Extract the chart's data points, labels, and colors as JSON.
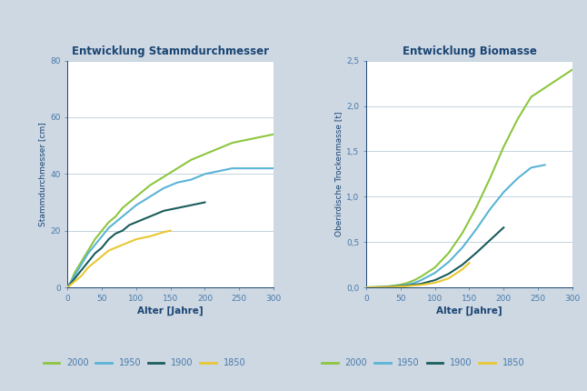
{
  "title_left": "Entwicklung Stammdurchmesser",
  "title_right": "Entwicklung Biomasse",
  "xlabel": "Alter [Jahre]",
  "ylabel_left": "Stammdurchmesser [cm]",
  "ylabel_right": "Oberirdische Trockenmasse [t]",
  "background_color": "#cdd8e3",
  "plot_bg_color": "#ffffff",
  "title_color": "#1a4472",
  "axis_color": "#1a4472",
  "tick_color": "#4a7aaa",
  "grid_color": "#b8ccd8",
  "legend_labels": [
    "2000",
    "1950",
    "1900",
    "1850"
  ],
  "line_colors": [
    "#8dc63f",
    "#5ab4d6",
    "#1a5c5c",
    "#e8c832"
  ],
  "xlim": [
    0,
    300
  ],
  "ylim_left": [
    0,
    80
  ],
  "ylim_right": [
    0,
    2.5
  ],
  "xticks": [
    0,
    50,
    100,
    150,
    200,
    250,
    300
  ],
  "yticks_left": [
    0,
    20,
    40,
    60,
    80
  ],
  "yticks_right": [
    0.0,
    0.5,
    1.0,
    1.5,
    2.0,
    2.5
  ],
  "diam_2000_ages": [
    0,
    5,
    10,
    20,
    30,
    40,
    50,
    60,
    70,
    80,
    90,
    100,
    120,
    140,
    160,
    180,
    200,
    220,
    240,
    260,
    280,
    300
  ],
  "diam_2000_vals": [
    0,
    2,
    5,
    9,
    13,
    17,
    20,
    23,
    25,
    28,
    30,
    32,
    36,
    39,
    42,
    45,
    47,
    49,
    51,
    52,
    53,
    54
  ],
  "diam_1950_ages": [
    0,
    5,
    10,
    20,
    30,
    40,
    50,
    60,
    70,
    80,
    90,
    100,
    120,
    140,
    160,
    180,
    200,
    220,
    240,
    260,
    280,
    300
  ],
  "diam_1950_vals": [
    0,
    2,
    4,
    8,
    12,
    15,
    18,
    21,
    23,
    25,
    27,
    29,
    32,
    35,
    37,
    38,
    40,
    41,
    42,
    42,
    42,
    42
  ],
  "diam_1900_ages": [
    0,
    5,
    10,
    20,
    30,
    40,
    50,
    60,
    70,
    80,
    90,
    100,
    120,
    140,
    160,
    180,
    200
  ],
  "diam_1900_vals": [
    0,
    1.5,
    3,
    6,
    9,
    12,
    14,
    17,
    19,
    20,
    22,
    23,
    25,
    27,
    28,
    29,
    30
  ],
  "diam_1850_ages": [
    0,
    5,
    10,
    20,
    30,
    40,
    50,
    60,
    70,
    80,
    90,
    100,
    120,
    140,
    150
  ],
  "diam_1850_vals": [
    0,
    1,
    2,
    4,
    7,
    9,
    11,
    13,
    14,
    15,
    16,
    17,
    18,
    19.5,
    20
  ],
  "bio_2000_ages": [
    0,
    10,
    20,
    30,
    40,
    50,
    60,
    70,
    80,
    100,
    120,
    140,
    160,
    180,
    200,
    220,
    240,
    260,
    280,
    300
  ],
  "bio_2000_vals": [
    0,
    0.002,
    0.005,
    0.01,
    0.02,
    0.03,
    0.05,
    0.08,
    0.12,
    0.22,
    0.38,
    0.6,
    0.88,
    1.2,
    1.55,
    1.85,
    2.1,
    2.2,
    2.3,
    2.4
  ],
  "bio_1950_ages": [
    0,
    10,
    20,
    30,
    40,
    50,
    60,
    70,
    80,
    100,
    120,
    140,
    160,
    180,
    200,
    220,
    240,
    260
  ],
  "bio_1950_vals": [
    0,
    0.001,
    0.003,
    0.007,
    0.012,
    0.02,
    0.03,
    0.05,
    0.08,
    0.16,
    0.28,
    0.44,
    0.64,
    0.86,
    1.05,
    1.2,
    1.32,
    1.35
  ],
  "bio_1900_ages": [
    0,
    10,
    20,
    30,
    40,
    60,
    80,
    100,
    120,
    140,
    160,
    180,
    200
  ],
  "bio_1900_vals": [
    0,
    0.001,
    0.002,
    0.005,
    0.009,
    0.02,
    0.04,
    0.08,
    0.15,
    0.25,
    0.38,
    0.52,
    0.66
  ],
  "bio_1850_ages": [
    0,
    10,
    20,
    40,
    60,
    80,
    100,
    120,
    140,
    150
  ],
  "bio_1850_vals": [
    0,
    0.001,
    0.002,
    0.006,
    0.014,
    0.028,
    0.05,
    0.1,
    0.2,
    0.27
  ]
}
